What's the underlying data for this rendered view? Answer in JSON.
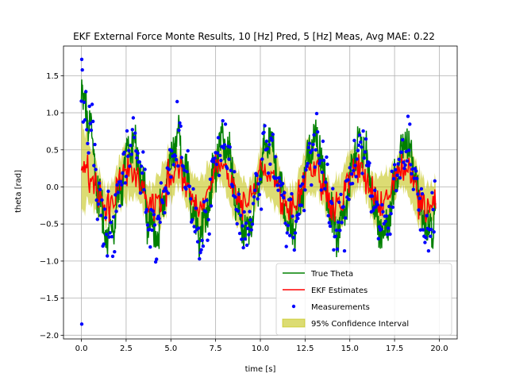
{
  "chart_data": {
    "type": "line",
    "title": "EKF External Force Monte Results, 10 [Hz] Pred, 5 [Hz] Meas, Avg MAE: 0.22",
    "xlabel": "time [s]",
    "ylabel": "theta [rad]",
    "xlim": [
      -1.0,
      21.0
    ],
    "ylim": [
      -2.05,
      1.9
    ],
    "xticks": [
      0.0,
      2.5,
      5.0,
      7.5,
      10.0,
      12.5,
      15.0,
      17.5,
      20.0
    ],
    "xtick_labels": [
      "0.0",
      "2.5",
      "5.0",
      "7.5",
      "10.0",
      "12.5",
      "15.0",
      "17.5",
      "20.0"
    ],
    "yticks": [
      -2.0,
      -1.5,
      -1.0,
      -0.5,
      0.0,
      0.5,
      1.0,
      1.5
    ],
    "ytick_labels": [
      "−2.0",
      "−1.5",
      "−1.0",
      "−0.5",
      "0.0",
      "0.5",
      "1.0",
      "1.5"
    ],
    "grid": true,
    "legend_position": "lower-right",
    "signal": {
      "t_start": 0.0,
      "t_end": 19.8,
      "dominant_period_s": 2.55,
      "true_theta_amplitude": 0.6,
      "true_theta_initial_amplitude": 1.5,
      "ekf_amplitude": 0.25,
      "confidence_halfwidth": 0.3,
      "measurement_max": 1.72,
      "measurement_min": -1.85
    },
    "series": [
      {
        "name": "True Theta",
        "color": "#008000",
        "kind": "line"
      },
      {
        "name": "EKF Estimates",
        "color": "#ff0000",
        "kind": "line"
      },
      {
        "name": "Measurements",
        "color": "#0000ff",
        "kind": "points"
      },
      {
        "name": "95% Confidence Interval",
        "color": "#bfbf00",
        "kind": "band"
      }
    ]
  }
}
